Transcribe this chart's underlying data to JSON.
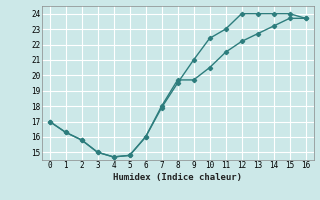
{
  "xlabel": "Humidex (Indice chaleur)",
  "bg_color": "#cce8e8",
  "grid_color": "#ffffff",
  "line_color": "#2d7d7d",
  "xlim": [
    -0.5,
    16.5
  ],
  "ylim": [
    14.5,
    24.5
  ],
  "xticks": [
    0,
    1,
    2,
    3,
    4,
    5,
    6,
    7,
    8,
    9,
    10,
    11,
    12,
    13,
    14,
    15,
    16
  ],
  "yticks": [
    15,
    16,
    17,
    18,
    19,
    20,
    21,
    22,
    23,
    24
  ],
  "line1_x": [
    0,
    1,
    2,
    3,
    4,
    5,
    6,
    7,
    8,
    9,
    10,
    11,
    12,
    13,
    14,
    15,
    16
  ],
  "line1_y": [
    17.0,
    16.3,
    15.8,
    15.0,
    14.7,
    14.8,
    16.0,
    17.9,
    19.5,
    21.0,
    22.4,
    23.0,
    24.0,
    24.0,
    24.0,
    24.0,
    23.7
  ],
  "line2_x": [
    0,
    1,
    2,
    3,
    4,
    5,
    6,
    7,
    8,
    9,
    10,
    11,
    12,
    13,
    14,
    15,
    16
  ],
  "line2_y": [
    17.0,
    16.3,
    15.8,
    15.0,
    14.7,
    14.8,
    16.0,
    18.0,
    19.7,
    19.7,
    20.5,
    21.5,
    22.2,
    22.7,
    23.2,
    23.7,
    23.7
  ]
}
